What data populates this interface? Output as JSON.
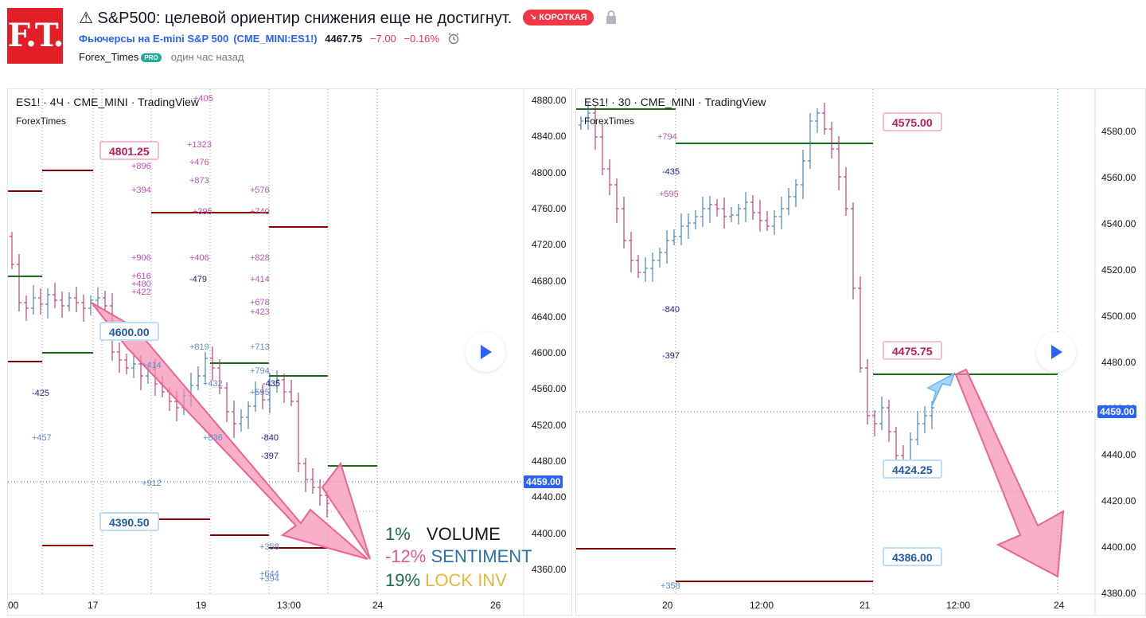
{
  "header": {
    "logo_text": "F.T.",
    "title": "⚠ S&P500: целевой ориентир снижения еще не достигнут.",
    "badge": "↘ КОРОТКАЯ",
    "symbol_name": "Фьючерсы на E-mini S&P 500",
    "symbol_code": "(CME_MINI:ES1!)",
    "last_price": "4467.75",
    "change": "−7.00",
    "change_pct": "−0.16%",
    "author": "Forex_Times",
    "author_badge": "PRO",
    "time_ago": "один час назад"
  },
  "colors": {
    "brand": "#e41e26",
    "short": "#f23645",
    "link": "#2962ff",
    "up_candle": "#2a6fb0",
    "down_candle": "#c2185b",
    "level_red": "#8b0000",
    "level_green": "#1b6b1b",
    "arrow_fill": "#f48fb1"
  },
  "left_chart": {
    "legend": "ES1! · 4Ч · CME_MINI · TradingView",
    "sublegend": "ForexTimes",
    "callouts": [
      "4801.25",
      "4600.00",
      "4390.50"
    ],
    "price_axis": [
      "4880.00",
      "4840.00",
      "4800.00",
      "4760.00",
      "4720.00",
      "4680.00",
      "4640.00",
      "4600.00",
      "4560.00",
      "4520.00",
      "4480.00",
      "4440.00",
      "4400.00",
      "4360.00"
    ],
    "current_price": "4459.00",
    "time_axis": [
      "00",
      "17",
      "19",
      "13:00",
      "24",
      "26"
    ],
    "volume_labels": [
      "+405",
      "+1323",
      "+896",
      "+476",
      "+873",
      "+394",
      "+576",
      "+395",
      "+740",
      "+906",
      "+406",
      "+828",
      "+616",
      "+480",
      "+422",
      "-479",
      "+414",
      "+678",
      "+423",
      "+819",
      "+713",
      "+414",
      "+794",
      "+432",
      "-435",
      "+595",
      "-425",
      "+457",
      "+836",
      "-840",
      "-397",
      "+912",
      "+358",
      "+644",
      "+394"
    ],
    "stats": [
      {
        "pct": "1%",
        "label": "VOLUME"
      },
      {
        "pct": "-12%",
        "label": "SENTIMENT"
      },
      {
        "pct": "19%",
        "label": "LOCK INV"
      }
    ]
  },
  "right_chart": {
    "legend": "ES1! · 30 · CME_MINI · TradingView",
    "sublegend": "ForexTimes",
    "callouts": [
      "4575.00",
      "4475.75",
      "4424.25",
      "4386.00"
    ],
    "price_axis": [
      "4580.00",
      "4560.00",
      "4540.00",
      "4520.00",
      "4500.00",
      "4480.00",
      "4460.00",
      "4440.00",
      "4420.00",
      "4400.00",
      "4380.00"
    ],
    "current_price": "4459.00",
    "time_axis": [
      "20",
      "12:00",
      "21",
      "12:00",
      "24"
    ],
    "volume_labels": [
      "+794",
      "-435",
      "+595",
      "-840",
      "-397",
      "+358"
    ]
  }
}
